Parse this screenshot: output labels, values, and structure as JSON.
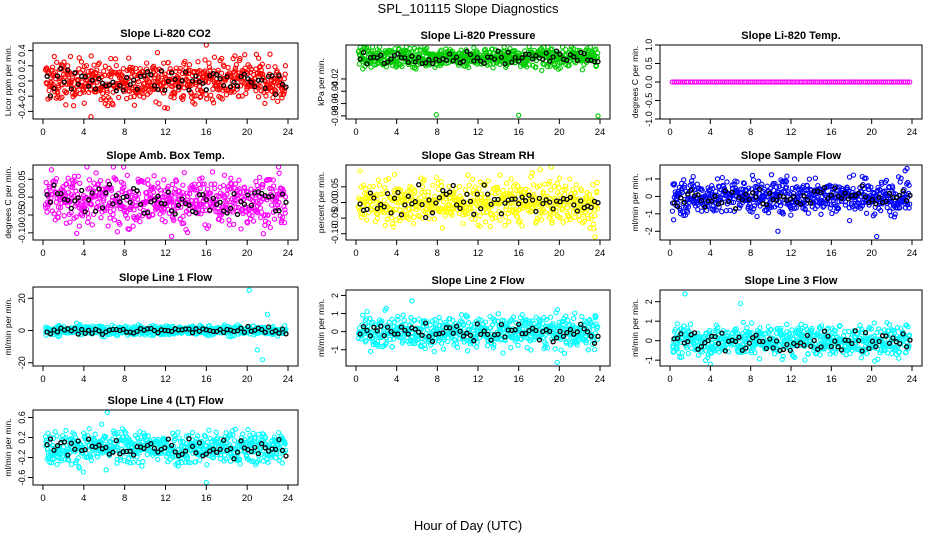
{
  "figure": {
    "title": "SPL_101115  Slope Diagnostics",
    "xlabel": "Hour of Day (UTC)"
  },
  "chart_data": [
    {
      "type": "scatter",
      "title": "Slope Li-820 CO2",
      "ylabel": "Licor ppm per min.",
      "xlim": [
        0,
        24
      ],
      "xticks": [
        0,
        4,
        8,
        12,
        16,
        20,
        24
      ],
      "ylim": [
        -0.5,
        0.5
      ],
      "yticks": [
        -0.4,
        -0.2,
        0.0,
        0.2,
        0.4
      ],
      "ytick_labels": [
        "-0.4",
        "-0.2",
        "0.0",
        "0.2",
        "0.4"
      ],
      "color": "#ff0000",
      "n_points": 620,
      "center": 0.0,
      "spread": 0.14,
      "outliers": [
        [
          16,
          0.48
        ],
        [
          4.7,
          -0.47
        ]
      ]
    },
    {
      "type": "scatter",
      "title": "Slope Li-820 Pressure",
      "ylabel": "kPa per min.",
      "xlim": [
        0,
        24
      ],
      "xticks": [
        0,
        4,
        8,
        12,
        16,
        20,
        24
      ],
      "ylim": [
        -0.085,
        0.035
      ],
      "yticks": [
        -0.08,
        -0.06,
        -0.04,
        -0.02
      ],
      "ytick_labels": [
        "-0.08",
        "-0.06",
        "-0.04",
        "-0.02"
      ],
      "color": "#00cc00",
      "n_points": 620,
      "center": 0.015,
      "spread": 0.008,
      "outliers": [
        [
          7.9,
          -0.078
        ],
        [
          16,
          -0.079
        ],
        [
          23.8,
          -0.08
        ]
      ]
    },
    {
      "type": "scatter",
      "title": "Slope Li-820 Temp.",
      "ylabel": "degrees C per min.",
      "xlim": [
        0,
        24
      ],
      "xticks": [
        0,
        4,
        8,
        12,
        16,
        20,
        24
      ],
      "ylim": [
        -1.0,
        1.0
      ],
      "yticks": [
        -1.0,
        -0.5,
        0.0,
        0.5,
        1.0
      ],
      "ytick_labels": [
        "-1.0",
        "-0.5",
        "0.0",
        "0.5",
        "1.0"
      ],
      "color": "#ff00ff",
      "n_points": 120,
      "center": 0.0,
      "spread": 0.0,
      "outliers": []
    },
    {
      "type": "scatter",
      "title": "Slope Amb. Box Temp.",
      "ylabel": "degrees C per min.",
      "xlim": [
        0,
        24
      ],
      "xticks": [
        0,
        4,
        8,
        12,
        16,
        20,
        24
      ],
      "ylim": [
        -0.12,
        0.09
      ],
      "yticks": [
        -0.1,
        -0.05,
        0.0,
        0.05
      ],
      "ytick_labels": [
        "-0.10",
        "-0.05",
        "0.00",
        "0.05"
      ],
      "color": "#ff00ff",
      "n_points": 620,
      "center": -0.01,
      "spread": 0.035,
      "outliers": [
        [
          7.9,
          0.085
        ],
        [
          12.6,
          -0.11
        ]
      ]
    },
    {
      "type": "scatter",
      "title": "Slope Gas Stream RH",
      "ylabel": "percent per min.",
      "xlim": [
        0,
        24
      ],
      "xticks": [
        0,
        4,
        8,
        12,
        16,
        20,
        24
      ],
      "ylim": [
        -0.12,
        0.12
      ],
      "yticks": [
        -0.1,
        -0.05,
        0.0,
        0.05
      ],
      "ytick_labels": [
        "-0.10",
        "-0.05",
        "0.00",
        "0.05"
      ],
      "color": "#ffff00",
      "n_points": 620,
      "center": 0.0,
      "spread": 0.035,
      "outliers": [
        [
          3.8,
          0.09
        ],
        [
          19.2,
          0.115
        ],
        [
          23.5,
          -0.11
        ]
      ]
    },
    {
      "type": "scatter",
      "title": "Slope Sample Flow",
      "ylabel": "ml/min per min.",
      "xlim": [
        0,
        24
      ],
      "xticks": [
        0,
        4,
        8,
        12,
        16,
        20,
        24
      ],
      "ylim": [
        -2.5,
        1.8
      ],
      "yticks": [
        -2,
        -1,
        0,
        1
      ],
      "ytick_labels": [
        "-2",
        "-1",
        "0",
        "1"
      ],
      "color": "#0000ff",
      "n_points": 620,
      "center": 0.0,
      "spread": 0.5,
      "outliers": [
        [
          10.7,
          -2.0
        ],
        [
          20.5,
          -2.3
        ],
        [
          23.5,
          1.6
        ]
      ]
    },
    {
      "type": "scatter",
      "title": "Slope Line 1 Flow",
      "ylabel": "ml/min per min.",
      "xlim": [
        0,
        24
      ],
      "xticks": [
        0,
        4,
        8,
        12,
        16,
        20,
        24
      ],
      "ylim": [
        -22,
        27
      ],
      "yticks": [
        -20,
        0,
        20
      ],
      "ytick_labels": [
        "-20",
        "0",
        "20"
      ],
      "color": "#00ffff",
      "n_points": 620,
      "center": 0.0,
      "spread": 1.5,
      "outliers": [
        [
          20.2,
          25
        ],
        [
          21.5,
          -18
        ],
        [
          22,
          10
        ],
        [
          21,
          -12
        ]
      ]
    },
    {
      "type": "scatter",
      "title": "Slope Line 2 Flow",
      "ylabel": "ml/min per min.",
      "xlim": [
        0,
        24
      ],
      "xticks": [
        0,
        4,
        8,
        12,
        16,
        20,
        24
      ],
      "ylim": [
        -1.9,
        2.3
      ],
      "yticks": [
        -1,
        0,
        1,
        2
      ],
      "ytick_labels": [
        "-1",
        "0",
        "1",
        "2"
      ],
      "color": "#00ffff",
      "n_points": 620,
      "center": 0.0,
      "spread": 0.45,
      "outliers": [
        [
          19.8,
          -1.7
        ],
        [
          20.5,
          -1.2
        ],
        [
          5.5,
          1.7
        ]
      ]
    },
    {
      "type": "scatter",
      "title": "Slope Line 3 Flow",
      "ylabel": "ml/min per min.",
      "xlim": [
        0,
        24
      ],
      "xticks": [
        0,
        4,
        8,
        12,
        16,
        20,
        24
      ],
      "ylim": [
        -1.3,
        2.6
      ],
      "yticks": [
        -1,
        0,
        1,
        2
      ],
      "ytick_labels": [
        "-1",
        "0",
        "1",
        "2"
      ],
      "color": "#00ffff",
      "n_points": 620,
      "center": 0.0,
      "spread": 0.4,
      "outliers": [
        [
          1.5,
          2.4
        ],
        [
          7.0,
          1.9
        ],
        [
          4.0,
          -1.2
        ]
      ]
    },
    {
      "type": "scatter",
      "title": "Slope Line 4 (LT) Flow",
      "ylabel": "ml/min per min.",
      "xlim": [
        0,
        24
      ],
      "xticks": [
        0,
        4,
        8,
        12,
        16,
        20,
        24
      ],
      "ylim": [
        -0.75,
        0.75
      ],
      "yticks": [
        -0.6,
        -0.2,
        0.2,
        0.6
      ],
      "ytick_labels": [
        "-0.6",
        "-0.2",
        "0.2",
        "0.6"
      ],
      "color": "#00ffff",
      "n_points": 620,
      "center": 0.0,
      "spread": 0.17,
      "outliers": [
        [
          6.3,
          0.7
        ],
        [
          16,
          -0.7
        ]
      ]
    }
  ]
}
